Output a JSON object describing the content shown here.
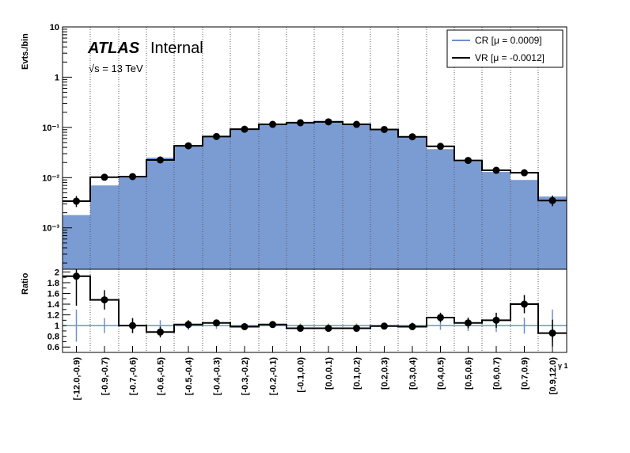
{
  "colors": {
    "cr_fill": "#7b9bd3",
    "cr_line": "#6f8fcf",
    "vr_line": "#000000",
    "grid": "#555555"
  },
  "labels": {
    "atlas": "ATLAS",
    "internal": "Internal",
    "energy": "√s = 13 TeV",
    "xaxis_label": "γ 1"
  },
  "chart_data": [
    {
      "type": "bar",
      "panel": "main",
      "ylabel": "Evts./bin",
      "yscale": "log",
      "ylim": [
        0.00015,
        10
      ],
      "yticks": [
        {
          "value": 0.001,
          "label": "10⁻³"
        },
        {
          "value": 0.01,
          "label": "10⁻²"
        },
        {
          "value": 0.1,
          "label": "10⁻¹"
        },
        {
          "value": 1,
          "label": "1"
        },
        {
          "value": 10,
          "label": "10"
        }
      ],
      "categories": [
        "[-12.0,-0.9)",
        "[-0.9,-0.7)",
        "[-0.7,-0.6)",
        "[-0.6,-0.5)",
        "[-0.5,-0.4)",
        "[-0.4,-0.3)",
        "[-0.3,-0.2)",
        "[-0.2,-0.1)",
        "[-0.1,0.0)",
        "[0.0,0.1)",
        "[0.1,0.2)",
        "[0.2,0.3)",
        "[0.3,0.4)",
        "[0.4,0.5)",
        "[0.5,0.6)",
        "[0.6,0.7)",
        "[0.7,0.9)",
        "[0.9,12.0)"
      ],
      "grid": "vertical dotted",
      "legend_position": "top-right",
      "series": [
        {
          "name": "CR [μ = 0.0009]",
          "style": "filled histogram",
          "values": [
            0.0018,
            0.007,
            0.0105,
            0.025,
            0.043,
            0.066,
            0.095,
            0.115,
            0.13,
            0.135,
            0.12,
            0.09,
            0.065,
            0.037,
            0.021,
            0.013,
            0.009,
            0.0042
          ]
        },
        {
          "name": "VR [μ = -0.0012]",
          "style": "line histogram with points",
          "values": [
            0.0034,
            0.0102,
            0.0105,
            0.0225,
            0.043,
            0.066,
            0.092,
            0.115,
            0.124,
            0.129,
            0.115,
            0.091,
            0.065,
            0.042,
            0.022,
            0.014,
            0.0125,
            0.0035
          ],
          "err_up": [
            0.0009,
            0.0015,
            0.0014,
            0.0025,
            0.0035,
            0.004,
            0.005,
            0.006,
            0.006,
            0.006,
            0.006,
            0.005,
            0.004,
            0.003,
            0.002,
            0.0016,
            0.0016,
            0.0009
          ],
          "err_dn": [
            0.0008,
            0.0014,
            0.0013,
            0.0023,
            0.0033,
            0.0038,
            0.0048,
            0.0058,
            0.0058,
            0.0058,
            0.0058,
            0.0048,
            0.0038,
            0.0029,
            0.0019,
            0.0015,
            0.0015,
            0.0008
          ]
        }
      ]
    },
    {
      "type": "line",
      "panel": "ratio",
      "ylabel": "Ratio",
      "ylim": [
        0.5,
        2.05
      ],
      "yticks": [
        {
          "value": 0.6,
          "label": "0.6"
        },
        {
          "value": 0.8,
          "label": "0.8"
        },
        {
          "value": 1.0,
          "label": "1"
        },
        {
          "value": 1.2,
          "label": "1.2"
        },
        {
          "value": 1.4,
          "label": "1.4"
        },
        {
          "value": 1.6,
          "label": "1.6"
        },
        {
          "value": 1.8,
          "label": "1.8"
        },
        {
          "value": 2.0,
          "label": "2"
        }
      ],
      "reference": 1.0,
      "cr_err": [
        0.3,
        0.14,
        0.13,
        0.1,
        0.08,
        0.06,
        0.05,
        0.04,
        0.04,
        0.04,
        0.04,
        0.05,
        0.06,
        0.08,
        0.1,
        0.12,
        0.15,
        0.3
      ],
      "values": [
        1.92,
        1.48,
        1.0,
        0.88,
        1.02,
        1.05,
        0.98,
        1.02,
        0.95,
        0.95,
        0.95,
        0.99,
        0.98,
        1.15,
        1.05,
        1.1,
        1.4,
        0.86
      ],
      "err_up": [
        0.4,
        0.18,
        0.14,
        0.1,
        0.08,
        0.06,
        0.05,
        0.05,
        0.05,
        0.05,
        0.05,
        0.05,
        0.06,
        0.09,
        0.1,
        0.14,
        0.17,
        0.25
      ],
      "err_dn": [
        0.55,
        0.18,
        0.14,
        0.1,
        0.08,
        0.06,
        0.05,
        0.05,
        0.05,
        0.05,
        0.05,
        0.05,
        0.06,
        0.09,
        0.1,
        0.14,
        0.17,
        0.25
      ]
    }
  ]
}
